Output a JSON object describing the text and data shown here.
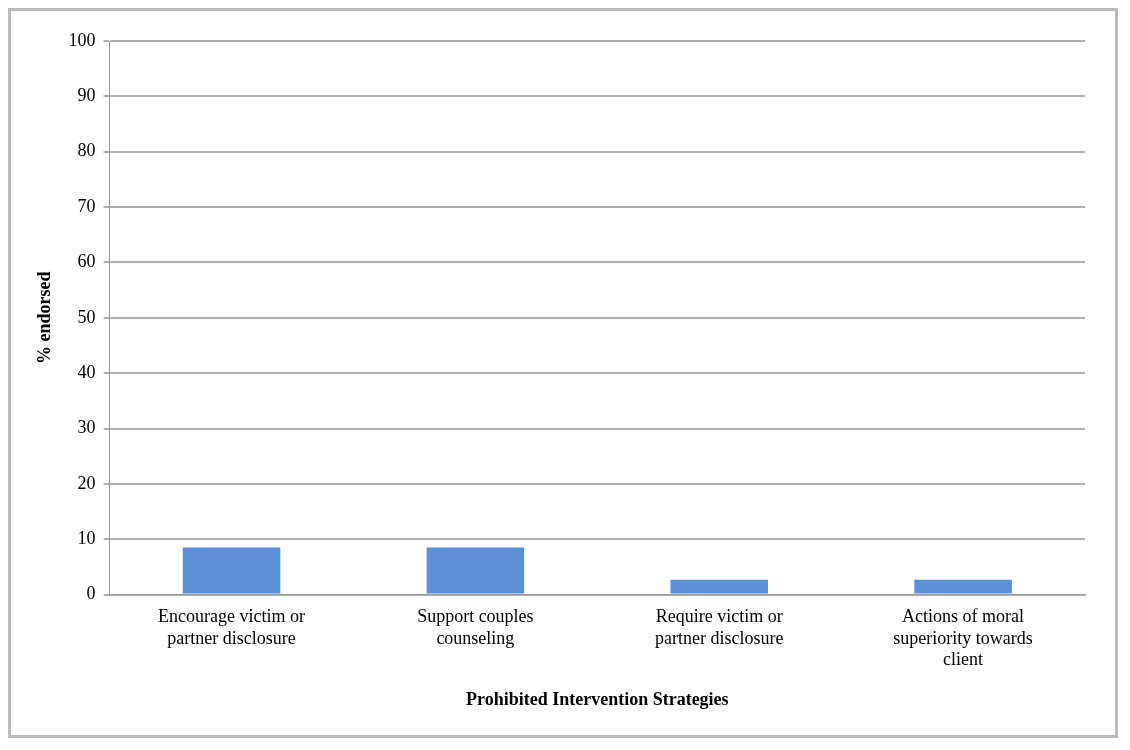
{
  "chart_data": {
    "type": "bar",
    "xlabel": "Prohibited Intervention Strategies",
    "ylabel": "% endorsed",
    "categories": [
      "Encourage victim or partner disclosure",
      "Support couples counseling",
      "Require victim or partner disclosure",
      "Actions of moral superiority towards client"
    ],
    "values": [
      8.5,
      8.5,
      2.7,
      2.7
    ],
    "color": "#5b8fd6",
    "ylim": [
      0,
      100
    ],
    "yticks": [
      0,
      10,
      20,
      30,
      40,
      50,
      60,
      70,
      80,
      90,
      100
    ],
    "grid": "y",
    "legend": false
  }
}
